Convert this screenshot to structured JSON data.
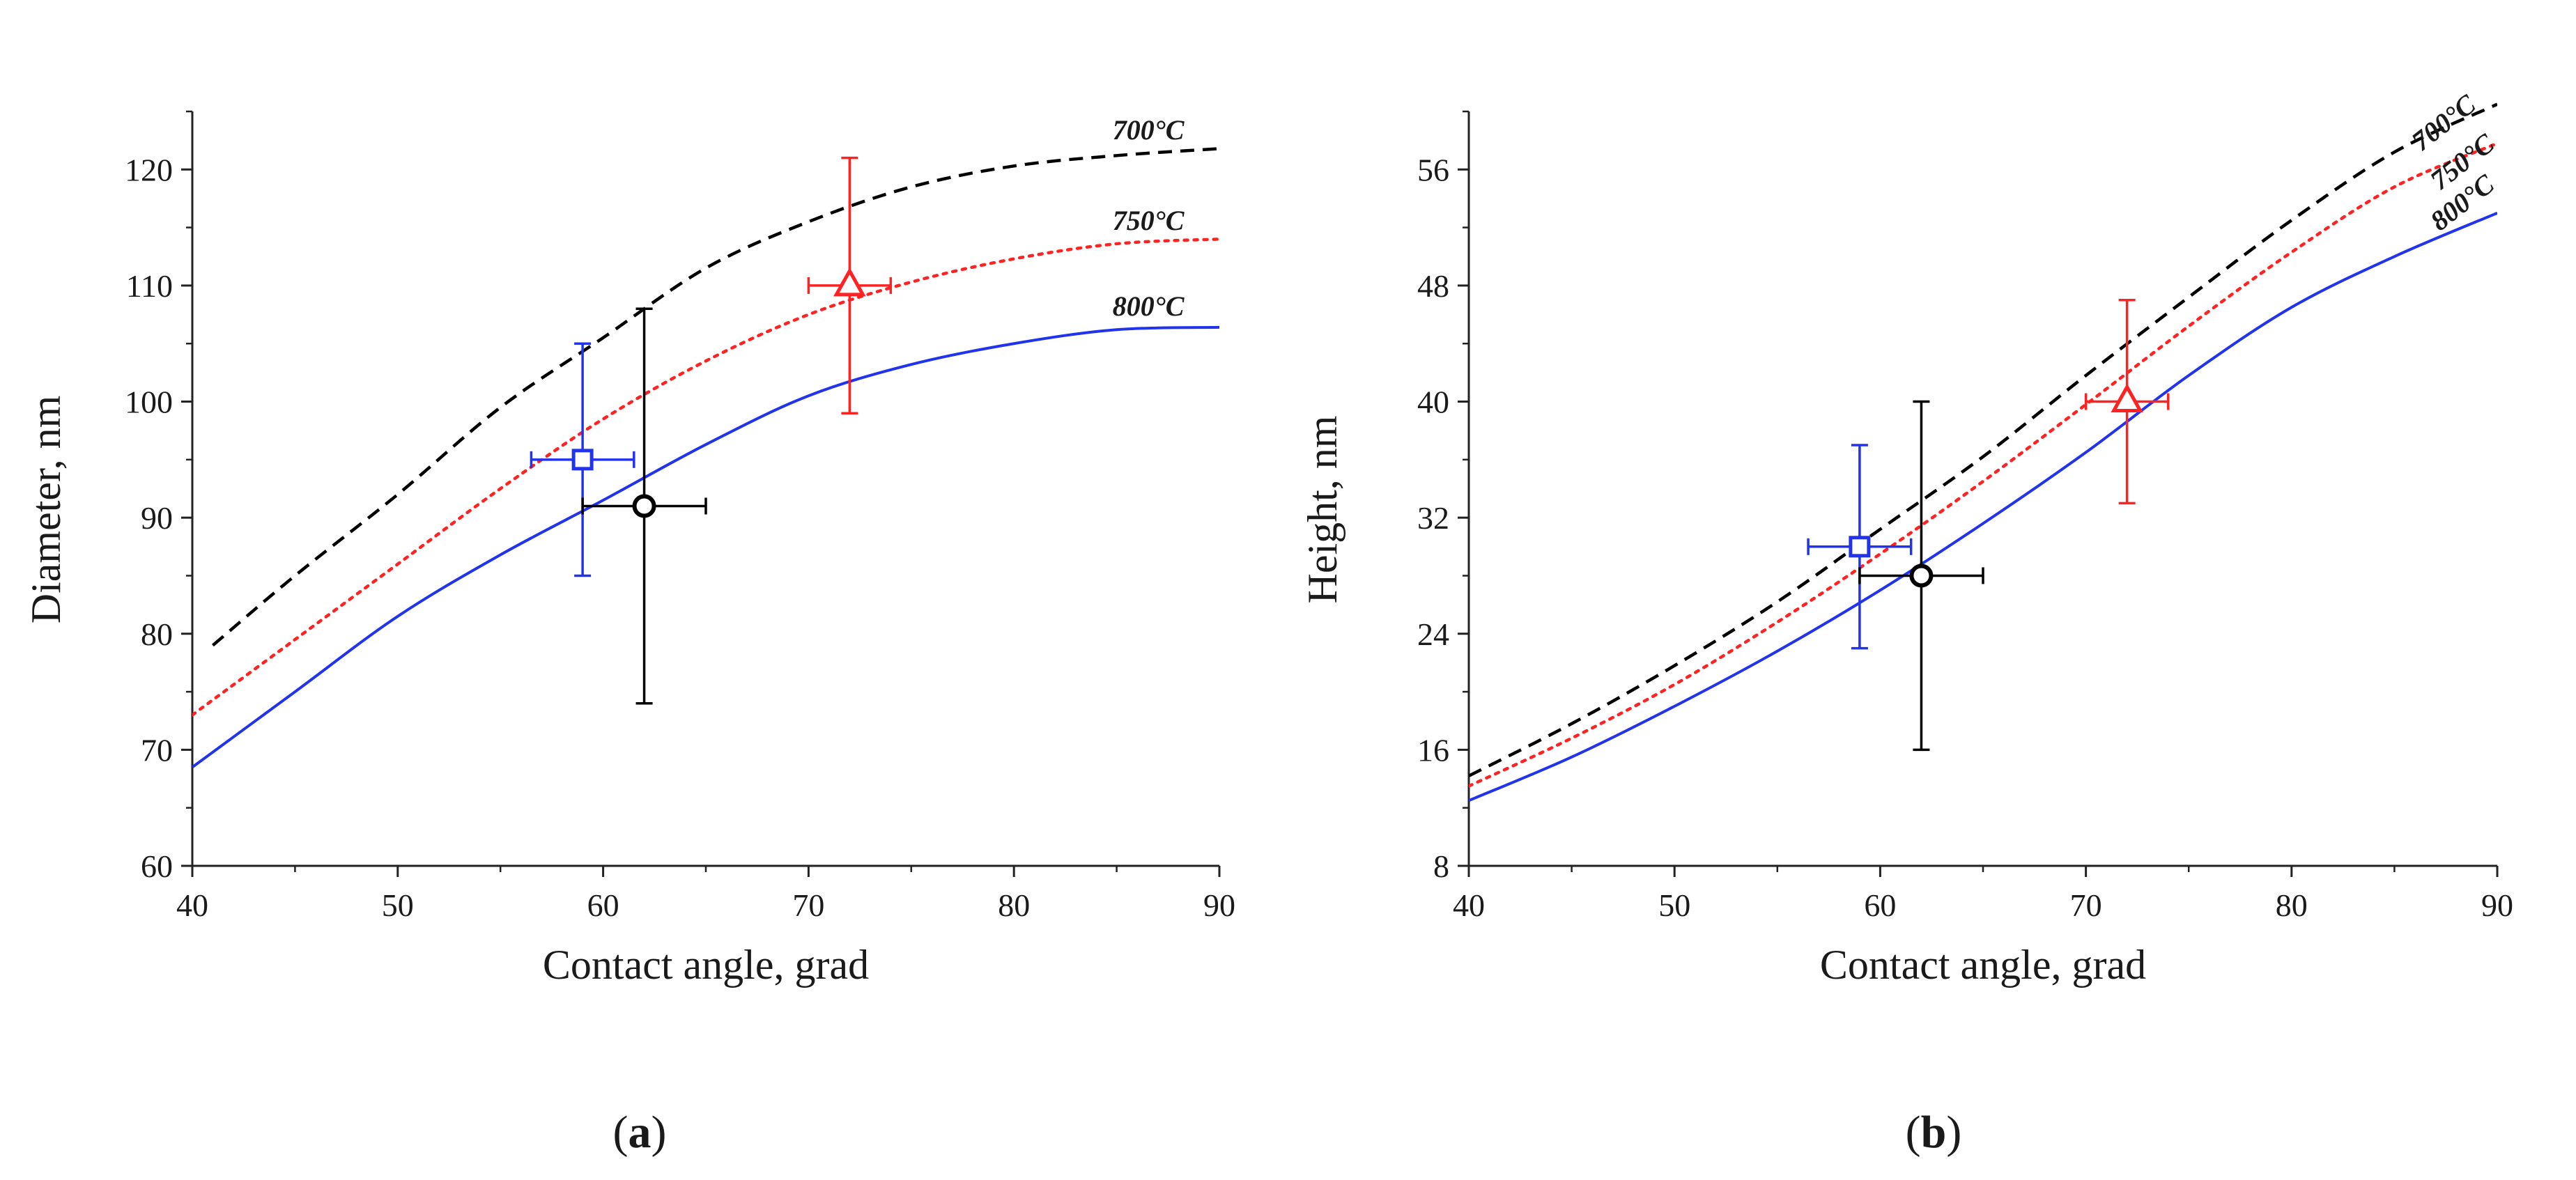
{
  "chart_data": [
    {
      "panel": "a",
      "type": "line",
      "xlabel": "Contact angle, grad",
      "ylabel": "Diameter, nm",
      "xlim": [
        40,
        90
      ],
      "ylim": [
        60,
        125
      ],
      "xticks": [
        40,
        50,
        60,
        70,
        80,
        90
      ],
      "yticks": [
        60,
        70,
        80,
        90,
        100,
        110,
        120
      ],
      "grid": false,
      "series": [
        {
          "name": "700°C",
          "color": "#000000",
          "style": "dashed",
          "x": [
            41,
            45,
            50,
            55,
            60,
            65,
            70,
            75,
            80,
            85,
            90
          ],
          "y": [
            79,
            85,
            92,
            99.5,
            105.5,
            111.5,
            115.5,
            118.5,
            120.3,
            121.2,
            121.8
          ]
        },
        {
          "name": "750°C",
          "color": "#ff2222",
          "style": "dotted",
          "x": [
            40,
            45,
            50,
            55,
            60,
            65,
            70,
            75,
            80,
            85,
            90
          ],
          "y": [
            73,
            79.5,
            86,
            92.5,
            98.5,
            103.5,
            107.5,
            110.3,
            112.3,
            113.6,
            114
          ]
        },
        {
          "name": "800°C",
          "color": "#2233ee",
          "style": "solid",
          "x": [
            40,
            45,
            50,
            55,
            60,
            65,
            70,
            75,
            80,
            85,
            90
          ],
          "y": [
            68.5,
            75,
            81.5,
            86.8,
            91.5,
            96.3,
            100.5,
            103.2,
            105,
            106.2,
            106.4
          ]
        }
      ],
      "points": [
        {
          "marker": "square",
          "color": "#2233ee",
          "x": 59,
          "y": 95,
          "xerr": [
            56.5,
            61.5
          ],
          "yerr": [
            85,
            105
          ]
        },
        {
          "marker": "circle",
          "color": "#000000",
          "x": 62,
          "y": 91,
          "xerr": [
            59,
            65
          ],
          "yerr": [
            74,
            108
          ]
        },
        {
          "marker": "triangle",
          "color": "#ff2222",
          "x": 72,
          "y": 110,
          "xerr": [
            70,
            74
          ],
          "yerr": [
            99,
            121
          ]
        }
      ],
      "annotations": [
        {
          "text": "700°C",
          "x": 84.8,
          "y": 122.6,
          "angle": 0
        },
        {
          "text": "750°C",
          "x": 84.8,
          "y": 114.8,
          "angle": 0
        },
        {
          "text": "800°C",
          "x": 84.8,
          "y": 107.4,
          "angle": 0
        }
      ]
    },
    {
      "panel": "b",
      "type": "line",
      "xlabel": "Contact angle, grad",
      "ylabel": "Height, nm",
      "xlim": [
        40,
        90
      ],
      "ylim": [
        8,
        60
      ],
      "xticks": [
        40,
        50,
        60,
        70,
        80,
        90
      ],
      "yticks": [
        8,
        16,
        24,
        32,
        40,
        48,
        56
      ],
      "grid": false,
      "series": [
        {
          "name": "700°C",
          "color": "#000000",
          "style": "dashed",
          "x": [
            40,
            45,
            50,
            55,
            60,
            65,
            70,
            75,
            80,
            85,
            90
          ],
          "y": [
            14.2,
            17.8,
            21.8,
            26.2,
            31.2,
            36.2,
            41.8,
            47.2,
            52.5,
            57.2,
            60.5
          ]
        },
        {
          "name": "750°C",
          "color": "#ff2222",
          "style": "dotted",
          "x": [
            40,
            45,
            50,
            55,
            60,
            65,
            70,
            75,
            80,
            85,
            90
          ],
          "y": [
            13.5,
            16.8,
            20.5,
            24.8,
            29.5,
            34.5,
            39.8,
            45.2,
            50.3,
            54.8,
            57.8
          ]
        },
        {
          "name": "800°C",
          "color": "#2233ee",
          "style": "solid",
          "x": [
            40,
            45,
            50,
            55,
            60,
            65,
            70,
            75,
            80,
            85,
            90
          ],
          "y": [
            12.5,
            15.5,
            19,
            22.8,
            27,
            31.6,
            36.5,
            41.8,
            46.5,
            50,
            53
          ]
        }
      ],
      "points": [
        {
          "marker": "square",
          "color": "#2233ee",
          "x": 59,
          "y": 30,
          "xerr": [
            56.5,
            61.5
          ],
          "yerr": [
            23,
            37
          ]
        },
        {
          "marker": "circle",
          "color": "#000000",
          "x": 62,
          "y": 28,
          "xerr": [
            59,
            65
          ],
          "yerr": [
            16,
            40
          ]
        },
        {
          "marker": "triangle",
          "color": "#ff2222",
          "x": 72,
          "y": 40,
          "xerr": [
            70,
            74
          ],
          "yerr": [
            33,
            47
          ]
        }
      ],
      "annotations": [
        {
          "text": "700°C",
          "x": 86.3,
          "y": 57.2,
          "angle": -38
        },
        {
          "text": "750°C",
          "x": 87.2,
          "y": 54.5,
          "angle": -38
        },
        {
          "text": "800°C",
          "x": 87.2,
          "y": 51.7,
          "angle": -38
        }
      ]
    }
  ],
  "panels": {
    "a_label": "a",
    "b_label": "b",
    "open_paren": "(",
    "close_paren": ")"
  }
}
